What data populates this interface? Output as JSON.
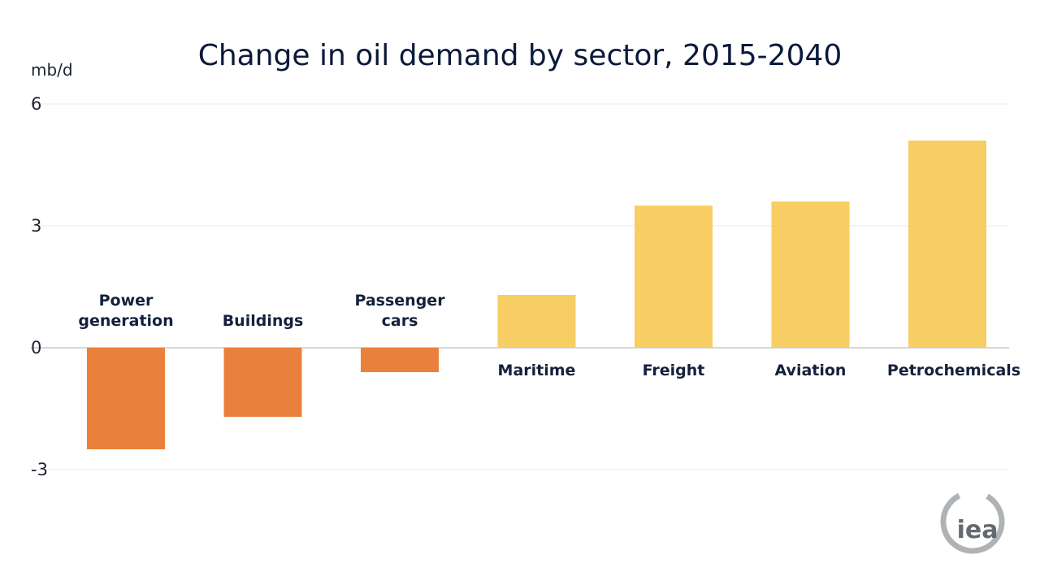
{
  "chart_data": {
    "type": "bar",
    "title": "Change in oil demand by sector, 2015-2040",
    "ylabel": "mb/d",
    "ylim": [
      -3,
      6
    ],
    "yticks": [
      6,
      3,
      0,
      -3
    ],
    "grid": true,
    "categories": [
      "Power\ngeneration",
      "Buildings",
      "Passenger\ncars",
      "Maritime",
      "Freight",
      "Aviation",
      "Petrochemicals"
    ],
    "values": [
      -2.5,
      -1.7,
      -0.6,
      1.3,
      3.5,
      3.6,
      5.1
    ],
    "colors": {
      "negative": "#e9813c",
      "positive": "#f7ce63"
    }
  },
  "logo": {
    "text": "iea"
  }
}
